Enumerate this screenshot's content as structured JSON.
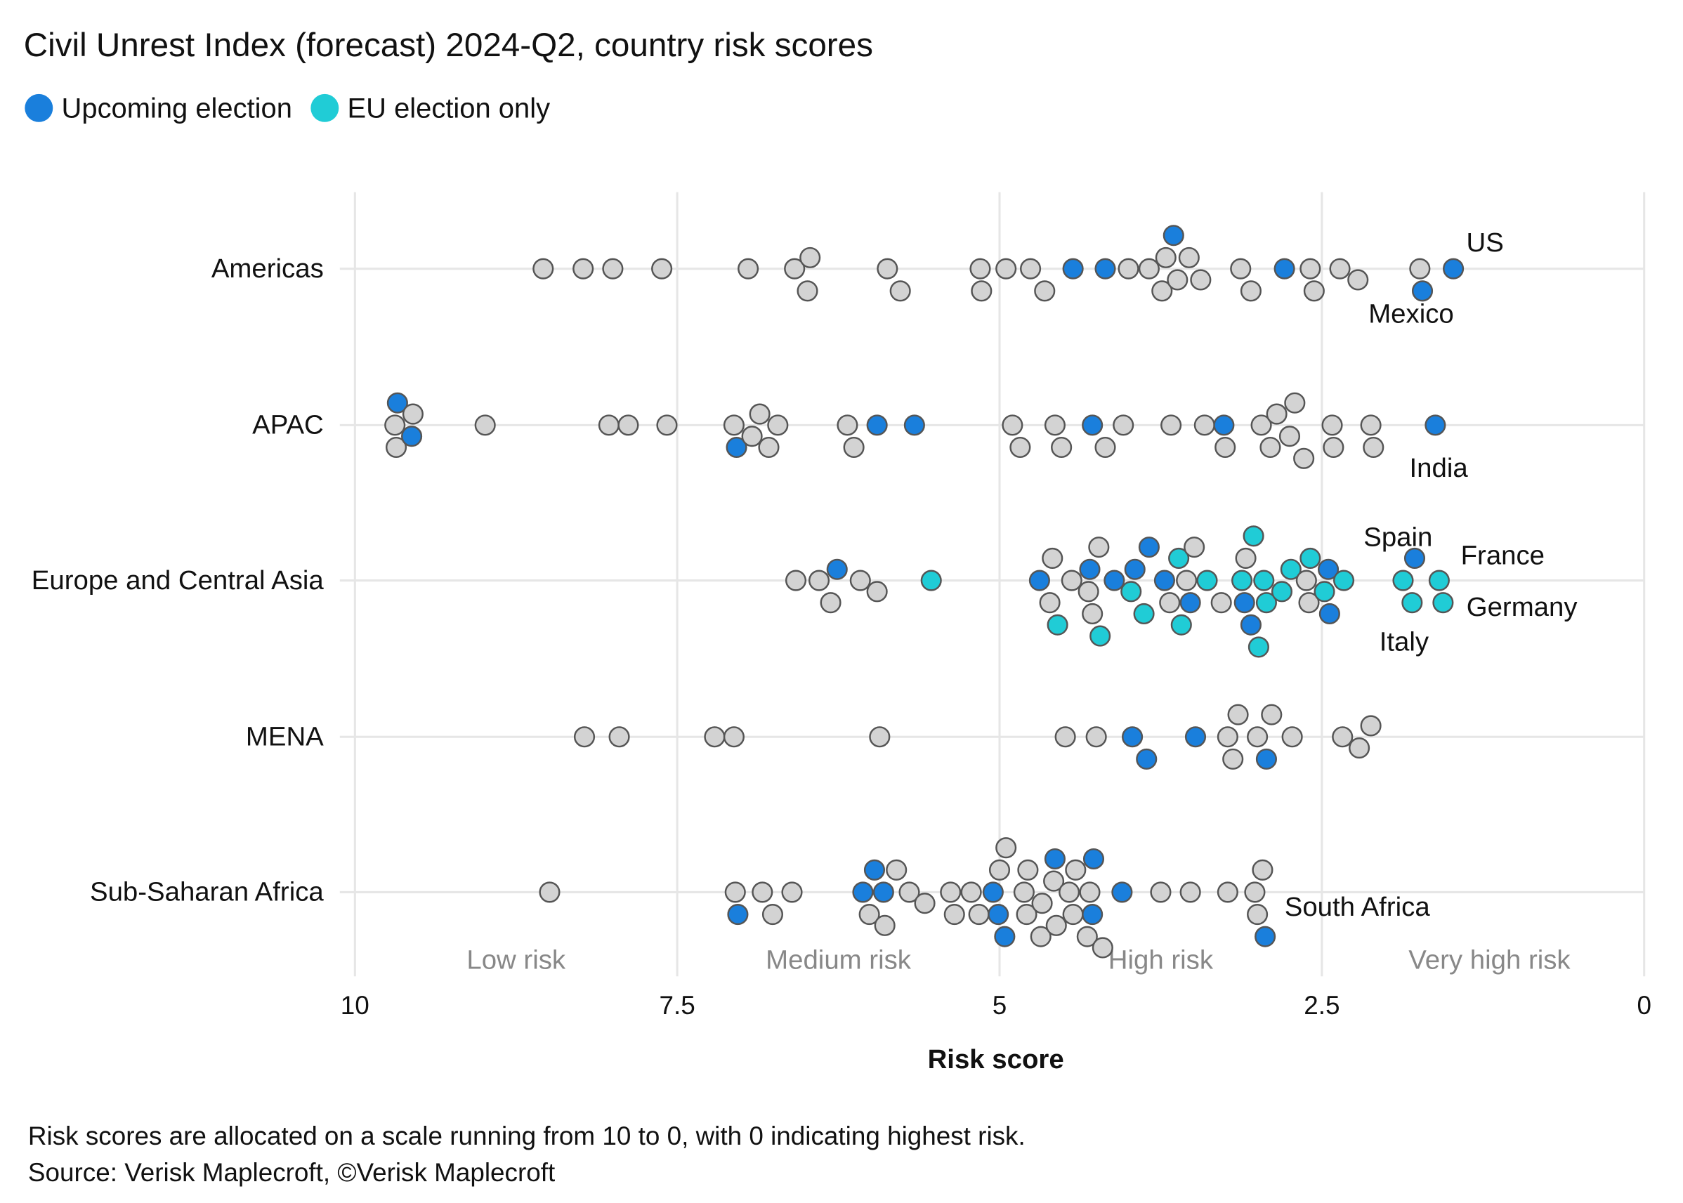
{
  "chart_data": {
    "type": "scatter",
    "subtype": "beeswarm",
    "title": "Civil Unrest Index (forecast) 2024-Q2, country risk scores",
    "xlabel": "Risk score",
    "xlim": [
      10,
      0
    ],
    "x_reversed": true,
    "xticks": [
      "10",
      "7.5",
      "5",
      "2.5",
      "0"
    ],
    "xtick_values": [
      10,
      7.5,
      5,
      2.5,
      0
    ],
    "grid": true,
    "legend_placement": "top-left",
    "legend": [
      {
        "key": "election",
        "label": "Upcoming election",
        "color": "#1a7fdc"
      },
      {
        "key": "eu",
        "label": "EU election only",
        "color": "#20ccd6"
      }
    ],
    "other_color": "#d3d3d3",
    "risk_bands": [
      {
        "label": "Low risk",
        "center": 8.75
      },
      {
        "label": "Medium risk",
        "center": 6.25
      },
      {
        "label": "High risk",
        "center": 3.75
      },
      {
        "label": "Very high risk",
        "center": 1.2
      }
    ],
    "categories": [
      "Americas",
      "APAC",
      "Europe and Central Asia",
      "MENA",
      "Sub-Saharan Africa"
    ],
    "series": [
      {
        "region": "Americas",
        "points": [
          [
            8.54,
            "o"
          ],
          [
            8.23,
            "o"
          ],
          [
            8.0,
            "o"
          ],
          [
            7.62,
            "o"
          ],
          [
            6.95,
            "o"
          ],
          [
            6.49,
            "o"
          ],
          [
            6.47,
            "o"
          ],
          [
            6.59,
            "o"
          ],
          [
            5.87,
            "o"
          ],
          [
            5.77,
            "o"
          ],
          [
            5.15,
            "o"
          ],
          [
            5.14,
            "o"
          ],
          [
            4.95,
            "o"
          ],
          [
            4.76,
            "o"
          ],
          [
            4.65,
            "o"
          ],
          [
            4.43,
            "election"
          ],
          [
            4.18,
            "election"
          ],
          [
            4.0,
            "o"
          ],
          [
            3.84,
            "o"
          ],
          [
            3.74,
            "o"
          ],
          [
            3.71,
            "o"
          ],
          [
            3.65,
            "election"
          ],
          [
            3.62,
            "o"
          ],
          [
            3.53,
            "o"
          ],
          [
            3.44,
            "o"
          ],
          [
            3.13,
            "o"
          ],
          [
            3.05,
            "o"
          ],
          [
            2.79,
            "election"
          ],
          [
            2.59,
            "o"
          ],
          [
            2.56,
            "o"
          ],
          [
            2.36,
            "o"
          ],
          [
            2.22,
            "o"
          ],
          [
            1.74,
            "o"
          ],
          [
            1.72,
            "election",
            "Mexico"
          ],
          [
            1.48,
            "election",
            "US"
          ]
        ]
      },
      {
        "region": "APAC",
        "points": [
          [
            9.69,
            "o"
          ],
          [
            9.56,
            "election"
          ],
          [
            9.55,
            "o"
          ],
          [
            9.67,
            "election"
          ],
          [
            9.68,
            "o"
          ],
          [
            8.99,
            "o"
          ],
          [
            8.03,
            "o"
          ],
          [
            7.88,
            "o"
          ],
          [
            7.58,
            "o"
          ],
          [
            7.06,
            "o"
          ],
          [
            7.04,
            "election"
          ],
          [
            6.79,
            "o"
          ],
          [
            6.86,
            "o"
          ],
          [
            6.72,
            "o"
          ],
          [
            6.92,
            "o"
          ],
          [
            6.18,
            "o"
          ],
          [
            6.13,
            "o"
          ],
          [
            5.95,
            "election"
          ],
          [
            5.66,
            "election"
          ],
          [
            4.9,
            "o"
          ],
          [
            4.84,
            "o"
          ],
          [
            4.57,
            "o"
          ],
          [
            4.52,
            "o"
          ],
          [
            4.28,
            "election"
          ],
          [
            4.18,
            "o"
          ],
          [
            4.04,
            "o"
          ],
          [
            3.67,
            "o"
          ],
          [
            3.41,
            "o"
          ],
          [
            3.26,
            "election"
          ],
          [
            3.25,
            "o"
          ],
          [
            2.97,
            "o"
          ],
          [
            2.9,
            "o"
          ],
          [
            2.85,
            "o"
          ],
          [
            2.75,
            "o"
          ],
          [
            2.71,
            "o"
          ],
          [
            2.64,
            "o"
          ],
          [
            2.42,
            "o"
          ],
          [
            2.41,
            "o"
          ],
          [
            2.12,
            "o"
          ],
          [
            2.1,
            "o"
          ],
          [
            1.62,
            "election",
            "India"
          ]
        ]
      },
      {
        "region": "Europe and Central Asia",
        "points": [
          [
            6.58,
            "o"
          ],
          [
            6.4,
            "o"
          ],
          [
            6.31,
            "o"
          ],
          [
            6.26,
            "election"
          ],
          [
            6.08,
            "o"
          ],
          [
            5.95,
            "o"
          ],
          [
            5.53,
            "eu"
          ],
          [
            4.69,
            "election"
          ],
          [
            4.61,
            "o"
          ],
          [
            4.59,
            "o"
          ],
          [
            4.55,
            "eu"
          ],
          [
            4.44,
            "o"
          ],
          [
            4.31,
            "o"
          ],
          [
            4.3,
            "election"
          ],
          [
            4.28,
            "o"
          ],
          [
            4.23,
            "o"
          ],
          [
            4.22,
            "eu"
          ],
          [
            4.11,
            "election"
          ],
          [
            3.98,
            "eu"
          ],
          [
            3.95,
            "election"
          ],
          [
            3.88,
            "eu"
          ],
          [
            3.84,
            "election"
          ],
          [
            3.72,
            "election"
          ],
          [
            3.68,
            "o"
          ],
          [
            3.61,
            "eu"
          ],
          [
            3.59,
            "eu"
          ],
          [
            3.55,
            "o"
          ],
          [
            3.52,
            "election"
          ],
          [
            3.49,
            "o"
          ],
          [
            3.39,
            "eu"
          ],
          [
            3.28,
            "o"
          ],
          [
            3.12,
            "eu"
          ],
          [
            3.1,
            "election"
          ],
          [
            3.09,
            "o"
          ],
          [
            3.05,
            "election"
          ],
          [
            3.03,
            "eu"
          ],
          [
            2.99,
            "eu"
          ],
          [
            2.95,
            "eu"
          ],
          [
            2.93,
            "eu"
          ],
          [
            2.81,
            "eu"
          ],
          [
            2.74,
            "eu"
          ],
          [
            2.62,
            "o"
          ],
          [
            2.6,
            "o"
          ],
          [
            2.59,
            "eu"
          ],
          [
            2.48,
            "eu"
          ],
          [
            2.45,
            "election"
          ],
          [
            2.44,
            "election"
          ],
          [
            2.33,
            "eu"
          ],
          [
            1.87,
            "eu",
            "Italy"
          ],
          [
            1.8,
            "eu",
            "Spain"
          ],
          [
            1.78,
            "election",
            "Germany"
          ],
          [
            1.59,
            "eu",
            "France"
          ],
          [
            1.56,
            "eu"
          ]
        ]
      },
      {
        "region": "MENA",
        "points": [
          [
            8.22,
            "o"
          ],
          [
            7.95,
            "o"
          ],
          [
            7.21,
            "o"
          ],
          [
            7.06,
            "o"
          ],
          [
            5.93,
            "o"
          ],
          [
            4.49,
            "o"
          ],
          [
            4.25,
            "o"
          ],
          [
            3.97,
            "election"
          ],
          [
            3.86,
            "election"
          ],
          [
            3.48,
            "election"
          ],
          [
            3.23,
            "o"
          ],
          [
            3.19,
            "o"
          ],
          [
            3.15,
            "o"
          ],
          [
            3.0,
            "o"
          ],
          [
            2.93,
            "election"
          ],
          [
            2.89,
            "o"
          ],
          [
            2.73,
            "o"
          ],
          [
            2.34,
            "o"
          ],
          [
            2.21,
            "o"
          ],
          [
            2.12,
            "o"
          ]
        ]
      },
      {
        "region": "Sub-Saharan Africa",
        "points": [
          [
            8.49,
            "o"
          ],
          [
            7.05,
            "o"
          ],
          [
            7.03,
            "election"
          ],
          [
            6.84,
            "o"
          ],
          [
            6.76,
            "o"
          ],
          [
            6.61,
            "o"
          ],
          [
            6.06,
            "election"
          ],
          [
            6.01,
            "o"
          ],
          [
            5.97,
            "election"
          ],
          [
            5.9,
            "election"
          ],
          [
            5.89,
            "o"
          ],
          [
            5.8,
            "o"
          ],
          [
            5.7,
            "o"
          ],
          [
            5.58,
            "o"
          ],
          [
            5.38,
            "o"
          ],
          [
            5.35,
            "o"
          ],
          [
            5.22,
            "o"
          ],
          [
            5.16,
            "o"
          ],
          [
            5.05,
            "election"
          ],
          [
            5.01,
            "election"
          ],
          [
            5.0,
            "o"
          ],
          [
            4.96,
            "election"
          ],
          [
            4.95,
            "o"
          ],
          [
            4.81,
            "o"
          ],
          [
            4.79,
            "o"
          ],
          [
            4.78,
            "o"
          ],
          [
            4.68,
            "o"
          ],
          [
            4.67,
            "o"
          ],
          [
            4.58,
            "o"
          ],
          [
            4.57,
            "election"
          ],
          [
            4.56,
            "o"
          ],
          [
            4.46,
            "o"
          ],
          [
            4.43,
            "o"
          ],
          [
            4.41,
            "o"
          ],
          [
            4.32,
            "o"
          ],
          [
            4.3,
            "o"
          ],
          [
            4.28,
            "election"
          ],
          [
            4.27,
            "election"
          ],
          [
            4.2,
            "o"
          ],
          [
            4.05,
            "election"
          ],
          [
            3.75,
            "o"
          ],
          [
            3.52,
            "o"
          ],
          [
            3.23,
            "o"
          ],
          [
            3.02,
            "o"
          ],
          [
            3.0,
            "o"
          ],
          [
            2.96,
            "o"
          ],
          [
            2.94,
            "election",
            "South Africa"
          ]
        ]
      }
    ]
  },
  "footnote": {
    "line1": "Risk scores are allocated on a scale running from 10 to 0, with 0 indicating highest risk.",
    "line2": "Source: Verisk Maplecroft, ©Verisk Maplecroft"
  }
}
